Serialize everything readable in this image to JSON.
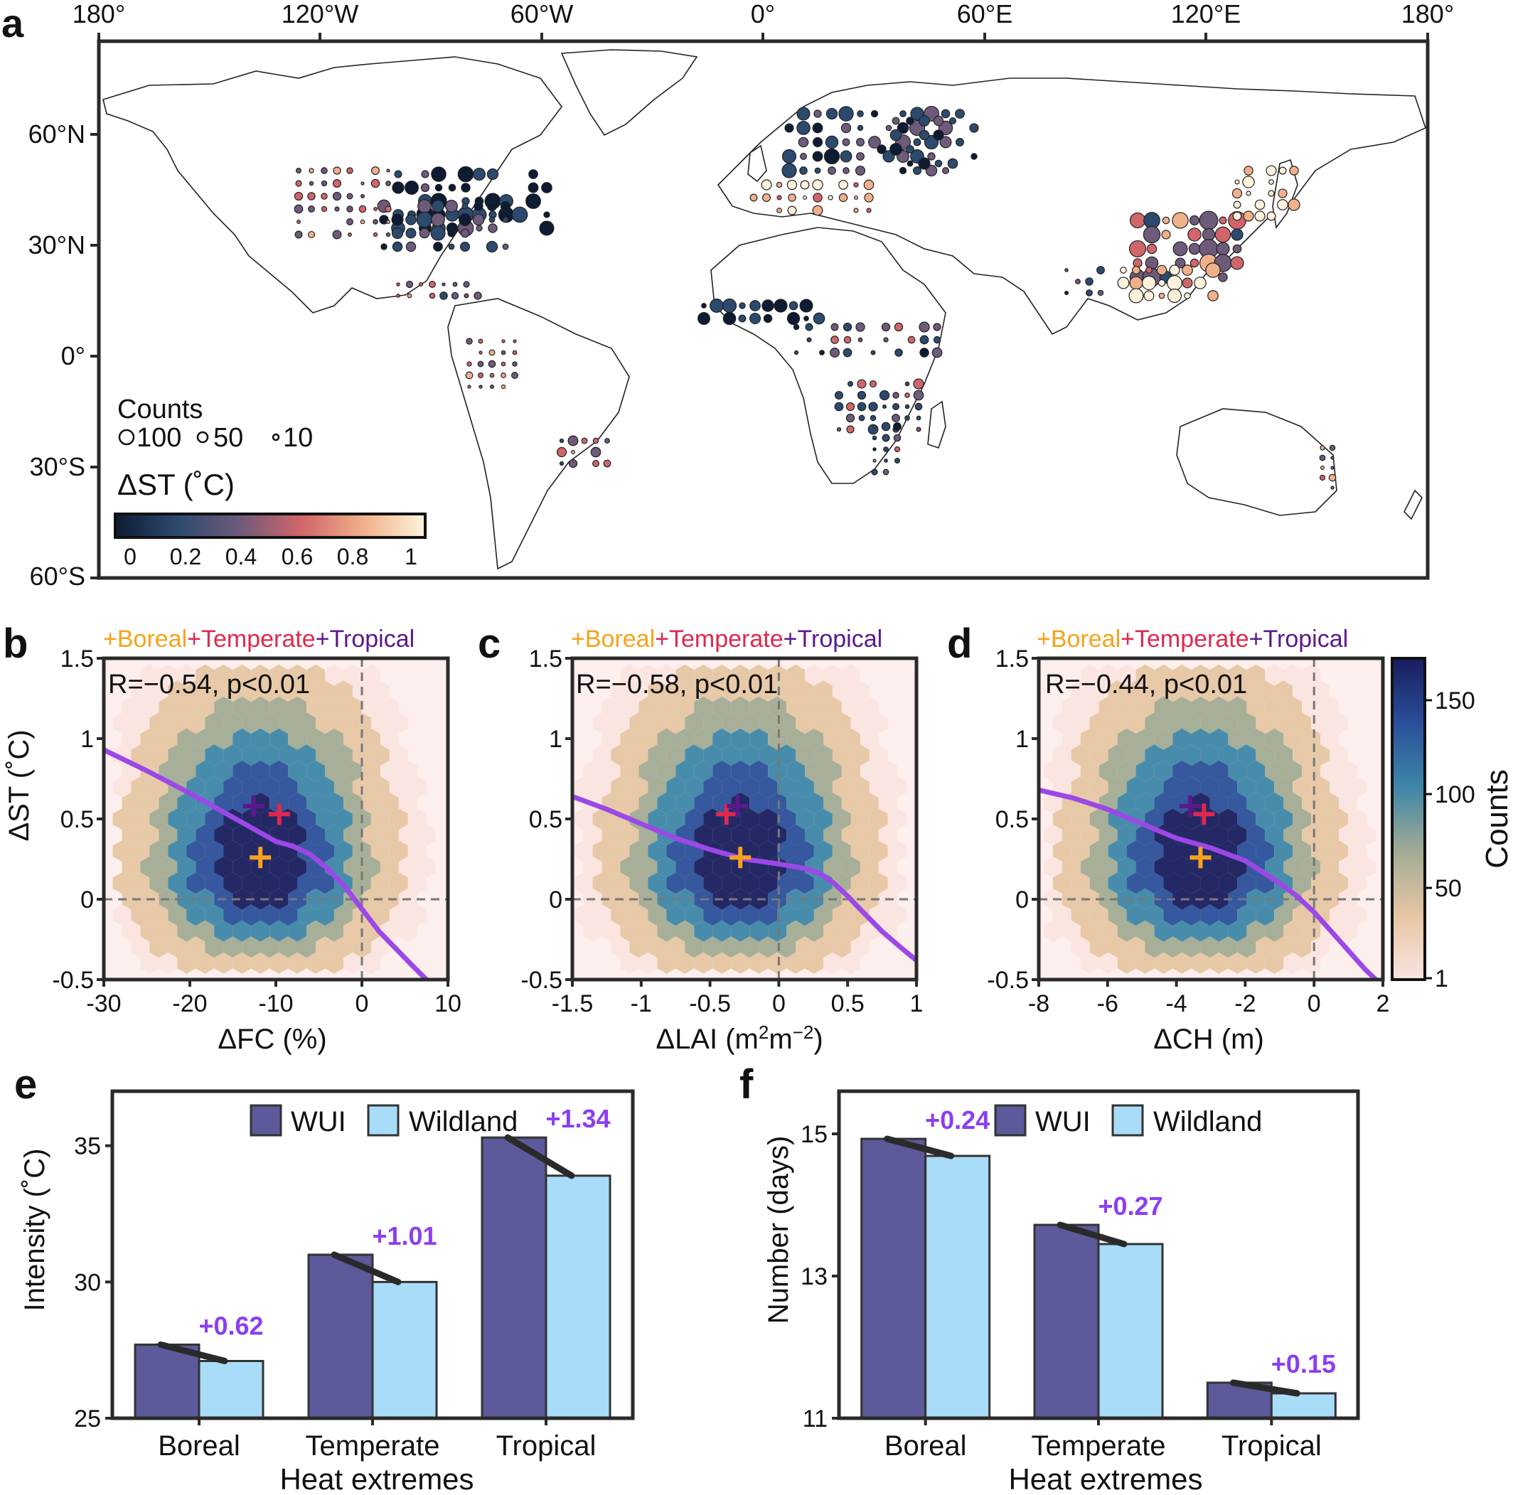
{
  "colors": {
    "frame": "#2a2a2a",
    "wui": "#5c5a9a",
    "wildland": "#a9dcf8",
    "diff_text": "#8a3ff0",
    "fit_line": "#9b48e6",
    "boreal": "#f7a21b",
    "temperate": "#e0284e",
    "tropical": "#5a1a8c",
    "dashed": "#777777",
    "coast": "#222222"
  },
  "panel_a": {
    "label": "a",
    "lon_ticks": [
      "180°",
      "120°W",
      "60°W",
      "0°",
      "60°E",
      "120°E",
      "180°"
    ],
    "lat_ticks": [
      "60°N",
      "30°N",
      "0°",
      "30°S",
      "60°S"
    ],
    "counts_title": "Counts",
    "counts_legend": [
      "100",
      "50",
      "10"
    ],
    "counts_values": [
      100,
      50,
      10
    ],
    "cbar_title": "ΔST (˚C)",
    "cbar_ticks": [
      "0",
      "0.2",
      "0.4",
      "0.6",
      "0.8",
      "1"
    ]
  },
  "scatter_panels": {
    "legend": {
      "boreal": "+Boreal",
      "temperate": "+Temperate",
      "tropical": "+Tropical"
    },
    "ylabel": "ΔST (˚C)",
    "yticks": [
      "1.5",
      "1",
      "0.5",
      "0",
      "-0.5"
    ],
    "b": {
      "label": "b",
      "stat": "R=−0.54, p<0.01",
      "xlabel": "ΔFC (%)",
      "xticks": [
        "-30",
        "-20",
        "-10",
        "0",
        "10"
      ]
    },
    "c": {
      "label": "c",
      "stat": "R=−0.58, p<0.01",
      "xlabel_main": "ΔLAI (m",
      "xlabel_sup1": "2",
      "xlabel_mid": "m",
      "xlabel_sup2": "−2",
      "xlabel_end": ")",
      "xticks": [
        "-1.5",
        "-1",
        "-0.5",
        "0",
        "0.5",
        "1"
      ]
    },
    "d": {
      "label": "d",
      "stat": "R=−0.44, p<0.01",
      "xlabel": "ΔCH (m)",
      "xticks": [
        "-8",
        "-6",
        "-4",
        "-2",
        "0",
        "2"
      ]
    },
    "counts_cbar": {
      "title": "Counts",
      "ticks": [
        "150",
        "100",
        "50",
        "1"
      ]
    }
  },
  "bar_panels": {
    "e": {
      "label": "e",
      "ylabel": "Intensity (˚C)",
      "xlabel": "Heat extremes",
      "yticks": [
        "35",
        "30",
        "25"
      ],
      "legend": [
        "WUI",
        "Wildland"
      ],
      "categories": [
        "Boreal",
        "Temperate",
        "Tropical"
      ],
      "diff_labels": [
        "+0.62",
        "+1.01",
        "+1.34"
      ]
    },
    "f": {
      "label": "f",
      "ylabel": "Number (days)",
      "xlabel": "Heat extremes",
      "yticks": [
        "15",
        "13",
        "11"
      ],
      "legend": [
        "WUI",
        "Wildland"
      ],
      "categories": [
        "Boreal",
        "Temperate",
        "Tropical"
      ],
      "diff_labels": [
        "+0.24",
        "+0.27",
        "+0.15"
      ]
    }
  },
  "chart_data": [
    {
      "type": "scatter",
      "panel": "a",
      "description_axes": "longitude / latitude map",
      "xlim": [
        -180,
        180
      ],
      "ylim": [
        -60,
        85
      ],
      "colorbar_range": [
        0,
        1.05
      ]
    },
    {
      "type": "heatmap",
      "panel": "b",
      "xlim": [
        -30,
        10
      ],
      "ylim": [
        -0.5,
        1.5
      ],
      "xlabel": "ΔFC (%)",
      "ylabel": "ΔST (˚C)",
      "annotation": "R=−0.54, p<0.01",
      "fit_line": {
        "x": [
          -30,
          -25,
          -20,
          -15,
          -12,
          -10,
          -8,
          -6,
          -4,
          -2,
          0,
          2,
          4,
          6,
          7.5
        ],
        "y": [
          0.93,
          0.8,
          0.66,
          0.51,
          0.42,
          0.36,
          0.33,
          0.28,
          0.19,
          0.08,
          -0.06,
          -0.2,
          -0.31,
          -0.42,
          -0.5
        ]
      },
      "markers": [
        {
          "name": "Boreal",
          "x": -11.8,
          "y": 0.26
        },
        {
          "name": "Temperate",
          "x": -9.6,
          "y": 0.53
        },
        {
          "name": "Tropical",
          "x": -12.6,
          "y": 0.58
        }
      ]
    },
    {
      "type": "heatmap",
      "panel": "c",
      "xlim": [
        -1.5,
        1
      ],
      "ylim": [
        -0.5,
        1.5
      ],
      "xlabel": "ΔLAI (m2m−2)",
      "ylabel": "ΔST (˚C)",
      "annotation": "R=−0.58, p<0.01",
      "fit_line": {
        "x": [
          -1.5,
          -1.25,
          -1,
          -0.75,
          -0.5,
          -0.25,
          0,
          0.2,
          0.3,
          0.4,
          0.5,
          0.6,
          0.75,
          0.9,
          1
        ],
        "y": [
          0.64,
          0.56,
          0.47,
          0.38,
          0.31,
          0.25,
          0.22,
          0.19,
          0.16,
          0.1,
          0.02,
          -0.07,
          -0.2,
          -0.31,
          -0.38
        ]
      },
      "markers": [
        {
          "name": "Boreal",
          "x": -0.28,
          "y": 0.26
        },
        {
          "name": "Temperate",
          "x": -0.38,
          "y": 0.53
        },
        {
          "name": "Tropical",
          "x": -0.3,
          "y": 0.58
        }
      ]
    },
    {
      "type": "heatmap",
      "panel": "d",
      "xlim": [
        -8,
        2
      ],
      "ylim": [
        -0.5,
        1.5
      ],
      "xlabel": "ΔCH (m)",
      "ylabel": "ΔST (˚C)",
      "annotation": "R=−0.44, p<0.01",
      "fit_line": {
        "x": [
          -8,
          -7,
          -6,
          -5,
          -4,
          -3,
          -2,
          -1,
          -0.5,
          0,
          0.5,
          1,
          1.5,
          1.8
        ],
        "y": [
          0.68,
          0.63,
          0.56,
          0.47,
          0.38,
          0.32,
          0.24,
          0.1,
          0.02,
          -0.08,
          -0.2,
          -0.32,
          -0.44,
          -0.5
        ]
      },
      "markers": [
        {
          "name": "Boreal",
          "x": -3.3,
          "y": 0.26
        },
        {
          "name": "Temperate",
          "x": -3.2,
          "y": 0.53
        },
        {
          "name": "Tropical",
          "x": -3.6,
          "y": 0.58
        }
      ],
      "colorbar_range": [
        1,
        170
      ]
    },
    {
      "type": "bar",
      "panel": "e",
      "title": "",
      "xlabel": "Heat extremes",
      "ylabel": "Intensity (˚C)",
      "ylim": [
        25,
        37
      ],
      "categories": [
        "Boreal",
        "Temperate",
        "Tropical"
      ],
      "series": [
        {
          "name": "WUI",
          "values": [
            27.7,
            31.0,
            35.3
          ]
        },
        {
          "name": "Wildland",
          "values": [
            27.1,
            30.0,
            33.9
          ]
        }
      ]
    },
    {
      "type": "bar",
      "panel": "f",
      "title": "",
      "xlabel": "Heat extremes",
      "ylabel": "Number (days)",
      "ylim": [
        11,
        15.6
      ],
      "categories": [
        "Boreal",
        "Temperate",
        "Tropical"
      ],
      "series": [
        {
          "name": "WUI",
          "values": [
            14.93,
            13.72,
            11.5
          ]
        },
        {
          "name": "Wildland",
          "values": [
            14.69,
            13.45,
            11.35
          ]
        }
      ]
    }
  ]
}
